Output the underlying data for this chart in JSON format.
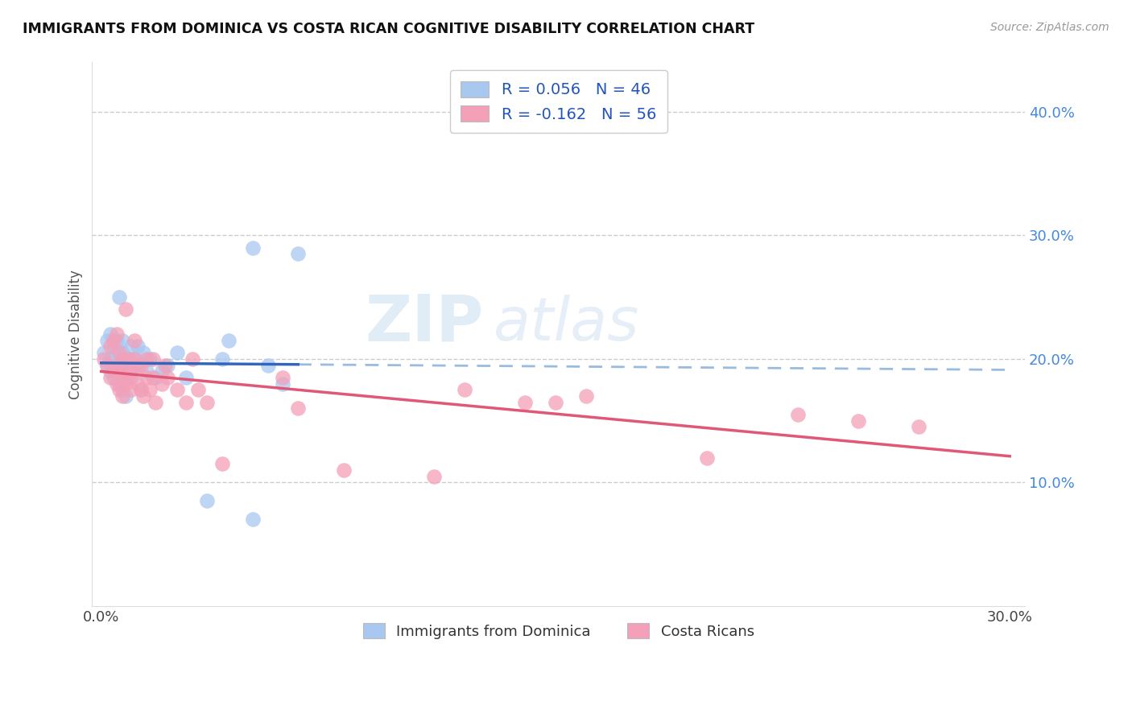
{
  "title": "IMMIGRANTS FROM DOMINICA VS COSTA RICAN COGNITIVE DISABILITY CORRELATION CHART",
  "source": "Source: ZipAtlas.com",
  "ylabel": "Cognitive Disability",
  "xlim": [
    -0.003,
    0.305
  ],
  "ylim": [
    0.0,
    0.44
  ],
  "yticks": [
    0.1,
    0.2,
    0.3,
    0.4
  ],
  "ytick_labels": [
    "10.0%",
    "20.0%",
    "30.0%",
    "40.0%"
  ],
  "xticks": [
    0.0,
    0.05,
    0.1,
    0.15,
    0.2,
    0.25,
    0.3
  ],
  "xtick_show": [
    "0.0%",
    "",
    "",
    "",
    "",
    "",
    "30.0%"
  ],
  "legend_label1": "R = 0.056   N = 46",
  "legend_label2": "R = -0.162   N = 56",
  "legend_bottom_label1": "Immigrants from Dominica",
  "legend_bottom_label2": "Costa Ricans",
  "blue_color": "#a8c8f0",
  "pink_color": "#f4a0b8",
  "line_blue_solid": "#3366bb",
  "line_blue_dash": "#99bbdd",
  "line_pink": "#e05878",
  "watermark_zip": "ZIP",
  "watermark_atlas": "atlas",
  "blue_scatter_x": [
    0.001,
    0.002,
    0.002,
    0.003,
    0.003,
    0.003,
    0.004,
    0.004,
    0.005,
    0.005,
    0.005,
    0.006,
    0.006,
    0.006,
    0.007,
    0.007,
    0.007,
    0.007,
    0.008,
    0.008,
    0.008,
    0.009,
    0.009,
    0.01,
    0.01,
    0.01,
    0.011,
    0.012,
    0.012,
    0.013,
    0.014,
    0.015,
    0.016,
    0.018,
    0.02,
    0.022,
    0.025,
    0.028,
    0.035,
    0.04,
    0.042,
    0.05,
    0.055,
    0.065,
    0.05,
    0.06
  ],
  "blue_scatter_y": [
    0.205,
    0.195,
    0.215,
    0.19,
    0.2,
    0.22,
    0.185,
    0.21,
    0.195,
    0.205,
    0.215,
    0.18,
    0.195,
    0.25,
    0.175,
    0.19,
    0.205,
    0.215,
    0.17,
    0.185,
    0.2,
    0.19,
    0.2,
    0.185,
    0.195,
    0.21,
    0.2,
    0.195,
    0.21,
    0.175,
    0.205,
    0.19,
    0.2,
    0.185,
    0.19,
    0.195,
    0.205,
    0.185,
    0.085,
    0.2,
    0.215,
    0.07,
    0.195,
    0.285,
    0.29,
    0.18
  ],
  "pink_scatter_x": [
    0.001,
    0.002,
    0.003,
    0.003,
    0.004,
    0.004,
    0.005,
    0.005,
    0.005,
    0.006,
    0.006,
    0.006,
    0.007,
    0.007,
    0.007,
    0.008,
    0.008,
    0.008,
    0.009,
    0.009,
    0.01,
    0.01,
    0.011,
    0.011,
    0.012,
    0.012,
    0.013,
    0.013,
    0.014,
    0.015,
    0.015,
    0.016,
    0.017,
    0.017,
    0.018,
    0.02,
    0.021,
    0.022,
    0.025,
    0.028,
    0.03,
    0.032,
    0.035,
    0.04,
    0.06,
    0.065,
    0.08,
    0.11,
    0.15,
    0.16,
    0.2,
    0.23,
    0.25,
    0.27,
    0.14,
    0.12
  ],
  "pink_scatter_y": [
    0.2,
    0.195,
    0.185,
    0.21,
    0.19,
    0.215,
    0.18,
    0.195,
    0.22,
    0.175,
    0.19,
    0.205,
    0.17,
    0.185,
    0.2,
    0.18,
    0.195,
    0.24,
    0.185,
    0.2,
    0.175,
    0.19,
    0.2,
    0.215,
    0.18,
    0.195,
    0.175,
    0.195,
    0.17,
    0.185,
    0.2,
    0.175,
    0.185,
    0.2,
    0.165,
    0.18,
    0.195,
    0.185,
    0.175,
    0.165,
    0.2,
    0.175,
    0.165,
    0.115,
    0.185,
    0.16,
    0.11,
    0.105,
    0.165,
    0.17,
    0.12,
    0.155,
    0.15,
    0.145,
    0.165,
    0.175
  ]
}
